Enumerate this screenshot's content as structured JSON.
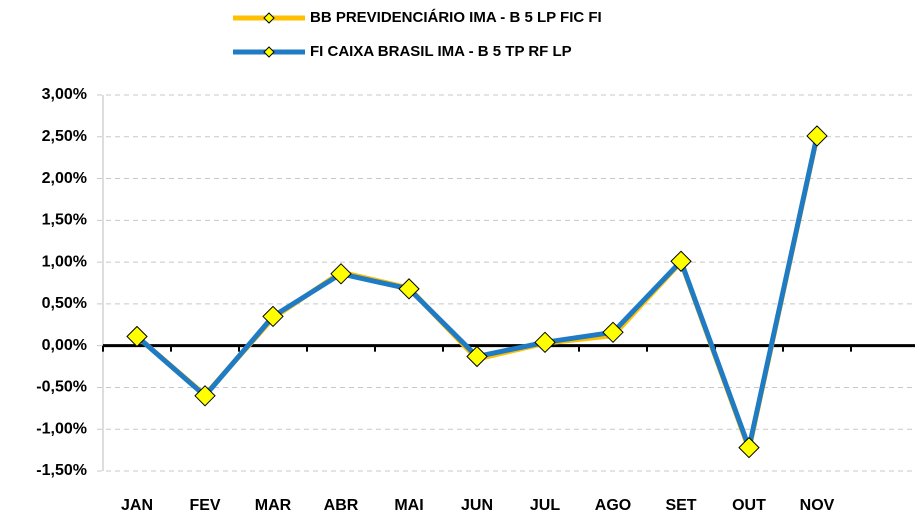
{
  "chart_data": {
    "type": "line",
    "categories": [
      "JAN",
      "FEV",
      "MAR",
      "ABR",
      "MAI",
      "JUN",
      "JUL",
      "AGO",
      "SET",
      "OUT",
      "NOV"
    ],
    "series": [
      {
        "name": "BB PREVIDENCIÁRIO IMA - B 5 LP FIC FI",
        "color": "#ffc000",
        "values": [
          0.11,
          -0.59,
          0.33,
          0.88,
          0.69,
          -0.16,
          0.03,
          0.12,
          1.0,
          -1.24,
          2.5
        ]
      },
      {
        "name": "FI CAIXA BRASIL IMA - B 5 TP RF LP",
        "color": "#1f7bc4",
        "values": [
          0.11,
          -0.6,
          0.35,
          0.86,
          0.68,
          -0.13,
          0.04,
          0.16,
          1.01,
          -1.22,
          2.51
        ]
      }
    ],
    "ylim": [
      -1.5,
      3.0
    ],
    "yticks": [
      {
        "value": -1.5,
        "label": "-1,50%"
      },
      {
        "value": -1.0,
        "label": "-1,00%"
      },
      {
        "value": -0.5,
        "label": "-0,50%"
      },
      {
        "value": 0.0,
        "label": "0,00%"
      },
      {
        "value": 0.5,
        "label": "0,50%"
      },
      {
        "value": 1.0,
        "label": "1,00%"
      },
      {
        "value": 1.5,
        "label": "1,50%"
      },
      {
        "value": 2.0,
        "label": "2,00%"
      },
      {
        "value": 2.5,
        "label": "2,50%"
      },
      {
        "value": 3.0,
        "label": "3,00%"
      }
    ],
    "grid": true,
    "legend": "top",
    "marker_color": "#ffff00"
  }
}
